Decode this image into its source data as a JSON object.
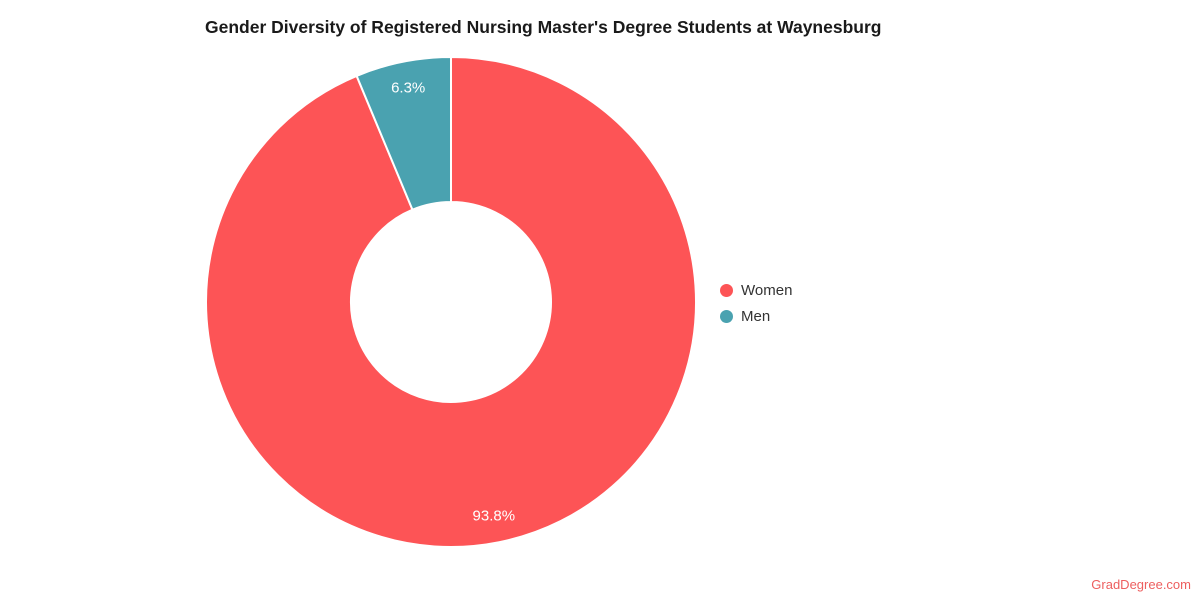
{
  "title": "Gender Diversity of Registered Nursing Master's Degree Students at Waynesburg",
  "watermark": "GradDegree.com",
  "colors": {
    "background": "#ffffff",
    "title_text": "#1a1a1a",
    "legend_text": "#333333",
    "slice_label_text": "#ffffff",
    "slice_border": "#ffffff",
    "watermark_text": "#ed5f5f",
    "women": "#fd5456",
    "men": "#4aa2b0"
  },
  "legend": {
    "position": "right",
    "items": [
      {
        "label": "Women",
        "color": "#fd5456"
      },
      {
        "label": "Men",
        "color": "#4aa2b0"
      }
    ]
  },
  "chart_data": {
    "type": "pie",
    "donut": true,
    "title": "Gender Diversity of Registered Nursing Master's Degree Students at Waynesburg",
    "slices": [
      {
        "name": "Women",
        "value": 93.8,
        "label": "93.8%",
        "color": "#fd5456"
      },
      {
        "name": "Men",
        "value": 6.3,
        "label": "6.3%",
        "color": "#4aa2b0"
      }
    ],
    "start_angle_deg": 0,
    "direction": "clockwise",
    "inner_radius_ratio": 0.41,
    "legend_position": "right",
    "data_labels": "inside"
  }
}
